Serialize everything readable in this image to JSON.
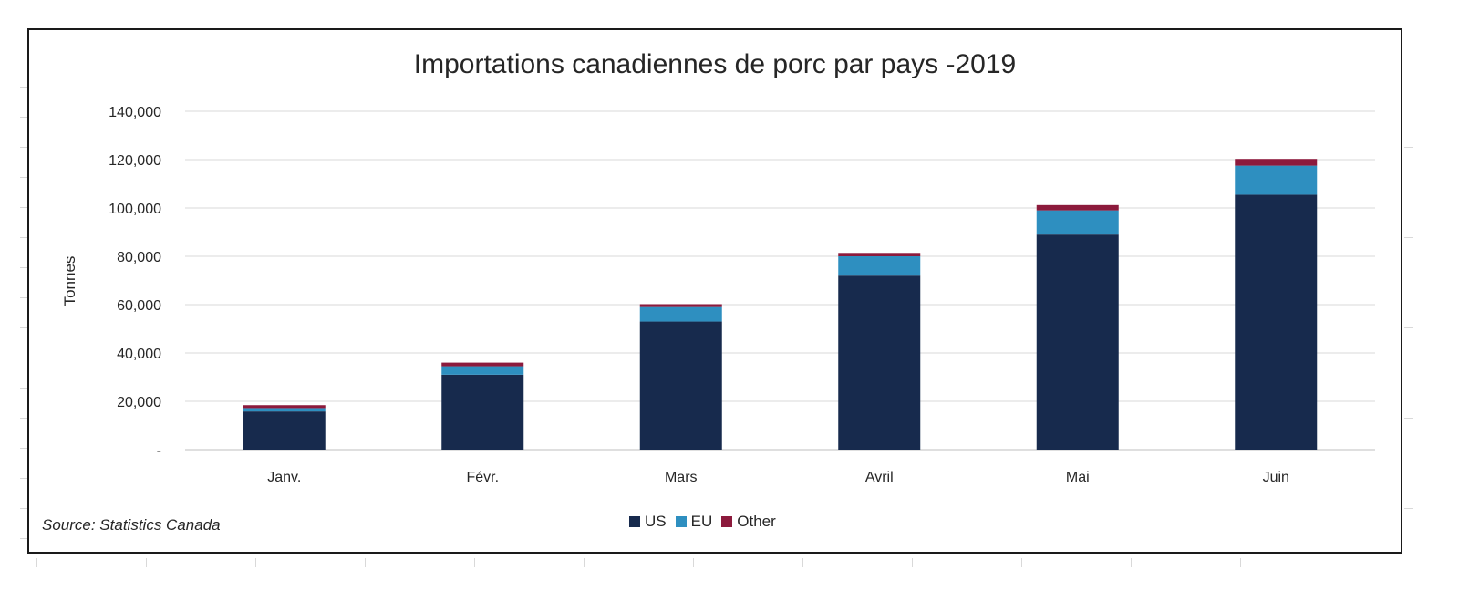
{
  "chart_data": {
    "type": "bar",
    "stacked": true,
    "title": "Importations canadiennes de porc par pays -2019",
    "ylabel": "Tonnes",
    "xlabel": "",
    "ylim": [
      0,
      140000
    ],
    "yticks": [
      {
        "value": 0,
        "label": "-"
      },
      {
        "value": 20000,
        "label": "20,000"
      },
      {
        "value": 40000,
        "label": "40,000"
      },
      {
        "value": 60000,
        "label": "60,000"
      },
      {
        "value": 80000,
        "label": "80,000"
      },
      {
        "value": 100000,
        "label": "100,000"
      },
      {
        "value": 120000,
        "label": "120,000"
      },
      {
        "value": 140000,
        "label": "140,000"
      }
    ],
    "categories": [
      "Janv.",
      "Févr.",
      "Mars",
      "Avril",
      "Mai",
      "Juin"
    ],
    "series": [
      {
        "name": "US",
        "color": "#172a4d",
        "values": [
          15800,
          31000,
          53000,
          72000,
          89000,
          105500
        ]
      },
      {
        "name": "EU",
        "color": "#2e8fc0",
        "values": [
          1400,
          3500,
          6000,
          8000,
          10000,
          12000
        ]
      },
      {
        "name": "Other",
        "color": "#8c1a3c",
        "values": [
          1200,
          1500,
          1200,
          1400,
          2200,
          2800
        ]
      }
    ],
    "grid": true,
    "legend_position": "bottom"
  },
  "source_text": "Source: Statistics Canada"
}
